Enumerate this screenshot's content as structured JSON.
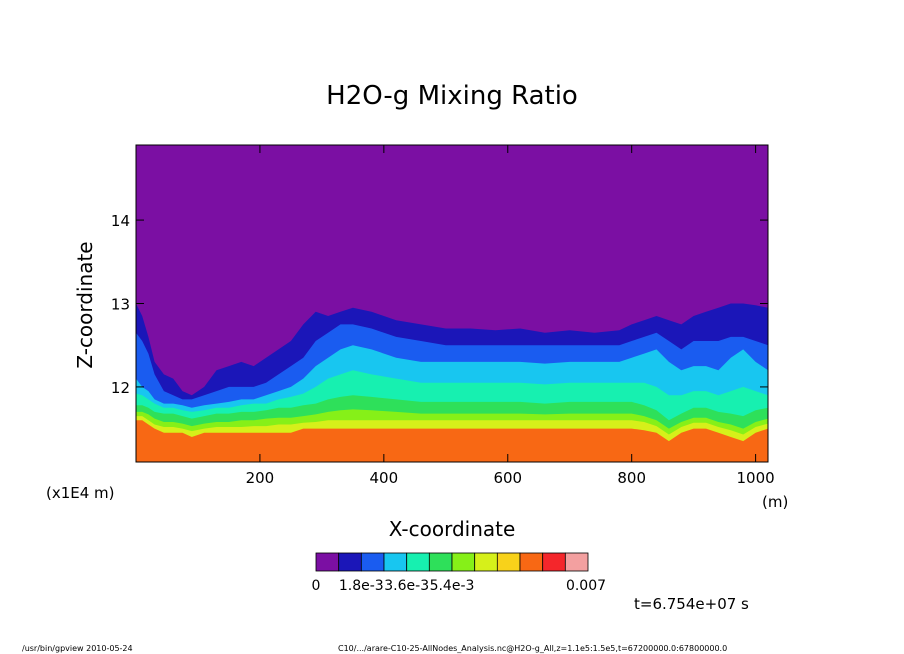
{
  "chart_data": {
    "type": "heatmap",
    "title": "H2O-g Mixing Ratio",
    "xlabel": "X-coordinate",
    "ylabel": "Z-coordinate",
    "x_units": "(m)",
    "y_scale_note": "(x1E4 m)",
    "xlim": [
      0,
      1020
    ],
    "ylim": [
      11.1,
      14.9
    ],
    "x_ticks": [
      "200",
      "400",
      "600",
      "800",
      "1000"
    ],
    "y_ticks": [
      "12",
      "13",
      "14"
    ],
    "x_tick_values": [
      200,
      400,
      600,
      800,
      1000
    ],
    "y_tick_values": [
      12,
      13,
      14
    ],
    "colorbar": {
      "labels": [
        "0",
        "1.8e-3",
        "3.6e-3",
        "5.4e-3",
        "0.007"
      ],
      "colors": [
        "#7b0fa3",
        "#1b16b8",
        "#1a5cf0",
        "#18c6f0",
        "#17f0b0",
        "#2ee05a",
        "#86f018",
        "#d6f01a",
        "#f8d21a",
        "#f86814",
        "#f4262b",
        "#f3a0a0"
      ]
    },
    "time_label": "t=6.754e+07 s",
    "profile_x": [
      0,
      10,
      20,
      30,
      45,
      60,
      75,
      90,
      110,
      130,
      150,
      170,
      190,
      210,
      230,
      250,
      270,
      290,
      310,
      330,
      350,
      380,
      420,
      460,
      500,
      540,
      580,
      620,
      660,
      700,
      740,
      780,
      800,
      820,
      840,
      860,
      880,
      900,
      920,
      940,
      960,
      980,
      1000,
      1020
    ],
    "top_contour_z": [
      13.0,
      12.85,
      12.6,
      12.3,
      12.15,
      12.1,
      11.95,
      11.9,
      12.0,
      12.2,
      12.25,
      12.3,
      12.25,
      12.35,
      12.45,
      12.55,
      12.75,
      12.9,
      12.85,
      12.9,
      12.95,
      12.9,
      12.8,
      12.75,
      12.7,
      12.7,
      12.68,
      12.7,
      12.65,
      12.68,
      12.65,
      12.68,
      12.75,
      12.8,
      12.85,
      12.8,
      12.75,
      12.85,
      12.9,
      12.95,
      13.0,
      13.0,
      12.98,
      12.95
    ],
    "boundary_z": [
      11.6,
      11.6,
      11.55,
      11.5,
      11.45,
      11.45,
      11.45,
      11.4,
      11.45,
      11.45,
      11.45,
      11.45,
      11.45,
      11.45,
      11.45,
      11.45,
      11.5,
      11.5,
      11.5,
      11.5,
      11.5,
      11.5,
      11.5,
      11.5,
      11.5,
      11.5,
      11.5,
      11.5,
      11.5,
      11.5,
      11.5,
      11.5,
      11.5,
      11.48,
      11.45,
      11.35,
      11.45,
      11.5,
      11.5,
      11.45,
      11.4,
      11.35,
      11.45,
      11.5
    ],
    "intermediate_levels": [
      {
        "color": "#1a5cf0",
        "z": [
          12.65,
          12.55,
          12.4,
          12.15,
          11.95,
          11.9,
          11.85,
          11.85,
          11.9,
          11.95,
          12.0,
          12.0,
          12.0,
          12.05,
          12.15,
          12.25,
          12.35,
          12.55,
          12.65,
          12.75,
          12.75,
          12.7,
          12.6,
          12.55,
          12.5,
          12.5,
          12.5,
          12.5,
          12.5,
          12.5,
          12.5,
          12.5,
          12.55,
          12.6,
          12.65,
          12.55,
          12.45,
          12.55,
          12.55,
          12.55,
          12.6,
          12.6,
          12.55,
          12.5
        ]
      },
      {
        "color": "#18c6f0",
        "z": [
          12.1,
          12.0,
          11.95,
          11.85,
          11.8,
          11.8,
          11.78,
          11.75,
          11.78,
          11.8,
          11.82,
          11.85,
          11.85,
          11.9,
          11.95,
          12.0,
          12.1,
          12.25,
          12.35,
          12.45,
          12.5,
          12.45,
          12.35,
          12.3,
          12.3,
          12.3,
          12.3,
          12.3,
          12.28,
          12.3,
          12.3,
          12.3,
          12.35,
          12.4,
          12.45,
          12.3,
          12.2,
          12.25,
          12.25,
          12.2,
          12.35,
          12.45,
          12.3,
          12.2
        ]
      },
      {
        "color": "#17f0b0",
        "z": [
          11.92,
          11.9,
          11.85,
          11.8,
          11.75,
          11.75,
          11.72,
          11.7,
          11.72,
          11.75,
          11.75,
          11.78,
          11.8,
          11.8,
          11.85,
          11.88,
          11.92,
          12.0,
          12.1,
          12.15,
          12.2,
          12.15,
          12.1,
          12.05,
          12.05,
          12.05,
          12.05,
          12.05,
          12.03,
          12.05,
          12.05,
          12.05,
          12.05,
          12.05,
          12.0,
          11.9,
          11.9,
          11.95,
          11.95,
          11.9,
          11.95,
          12.0,
          11.95,
          11.9
        ]
      },
      {
        "color": "#2ee05a",
        "z": [
          11.78,
          11.78,
          11.75,
          11.7,
          11.68,
          11.68,
          11.65,
          11.62,
          11.65,
          11.68,
          11.68,
          11.7,
          11.7,
          11.72,
          11.75,
          11.75,
          11.78,
          11.8,
          11.85,
          11.88,
          11.9,
          11.88,
          11.85,
          11.82,
          11.82,
          11.82,
          11.82,
          11.82,
          11.8,
          11.82,
          11.82,
          11.82,
          11.82,
          11.78,
          11.72,
          11.6,
          11.68,
          11.75,
          11.75,
          11.7,
          11.68,
          11.65,
          11.72,
          11.75
        ]
      },
      {
        "color": "#86f018",
        "z": [
          11.7,
          11.7,
          11.67,
          11.62,
          11.58,
          11.58,
          11.56,
          11.53,
          11.56,
          11.58,
          11.58,
          11.6,
          11.6,
          11.62,
          11.63,
          11.63,
          11.65,
          11.67,
          11.7,
          11.72,
          11.73,
          11.72,
          11.7,
          11.68,
          11.68,
          11.68,
          11.68,
          11.68,
          11.67,
          11.68,
          11.68,
          11.68,
          11.68,
          11.65,
          11.6,
          11.5,
          11.58,
          11.63,
          11.63,
          11.58,
          11.55,
          11.5,
          11.58,
          11.62
        ]
      },
      {
        "color": "#d6f01a",
        "z": [
          11.65,
          11.65,
          11.6,
          11.55,
          11.52,
          11.52,
          11.5,
          11.47,
          11.5,
          11.52,
          11.52,
          11.52,
          11.53,
          11.53,
          11.55,
          11.55,
          11.57,
          11.58,
          11.6,
          11.6,
          11.6,
          11.6,
          11.6,
          11.6,
          11.6,
          11.6,
          11.6,
          11.6,
          11.6,
          11.6,
          11.6,
          11.6,
          11.6,
          11.58,
          11.53,
          11.43,
          11.52,
          11.57,
          11.57,
          11.52,
          11.48,
          11.43,
          11.52,
          11.56
        ]
      }
    ]
  },
  "footer": {
    "left": "/usr/bin/gpview  2010-05-24",
    "right": "C10/.../arare-C10-25-AllNodes_Analysis.nc@H2O-g_All,z=1.1e5:1.5e5,t=67200000.0:67800000.0"
  }
}
